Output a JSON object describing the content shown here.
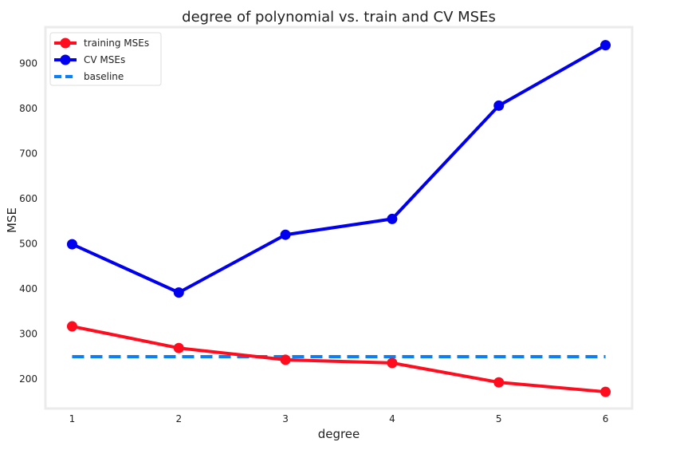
{
  "chart_data": {
    "type": "line",
    "title": "degree of polynomial vs. train and CV MSEs",
    "xlabel": "degree",
    "ylabel": "MSE",
    "x": [
      1,
      2,
      3,
      4,
      5,
      6
    ],
    "x_ticks": [
      "1",
      "2",
      "3",
      "4",
      "5",
      "6"
    ],
    "y_ticks": [
      "200",
      "300",
      "400",
      "500",
      "600",
      "700",
      "800",
      "900"
    ],
    "xlim": [
      0.75,
      6.25
    ],
    "ylim": [
      135,
      980
    ],
    "grid": false,
    "legend_position": "top-left",
    "series": [
      {
        "name": "training MSEs",
        "color": "#ff0d1f",
        "style": "solid-marker",
        "values": [
          317,
          269,
          243,
          236,
          193,
          172
        ]
      },
      {
        "name": "CV MSEs",
        "color": "#0000ee",
        "style": "solid-marker",
        "values": [
          499,
          392,
          520,
          555,
          806,
          940
        ]
      },
      {
        "name": "baseline",
        "color": "#0c7ff2",
        "style": "dashed",
        "values": [
          250,
          250,
          250,
          250,
          250,
          250
        ]
      }
    ]
  }
}
